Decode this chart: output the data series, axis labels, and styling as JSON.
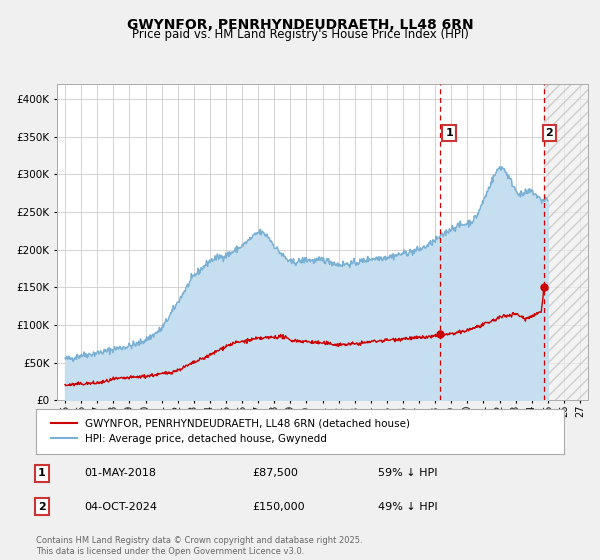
{
  "title": "GWYNFOR, PENRHYNDEUDRAETH, LL48 6RN",
  "subtitle": "Price paid vs. HM Land Registry's House Price Index (HPI)",
  "title_fontsize": 10,
  "subtitle_fontsize": 8.5,
  "bg_color": "#f0f0f0",
  "plot_bg_color": "#ffffff",
  "grid_color": "#cccccc",
  "red_color": "#cc0000",
  "blue_color": "#7ab0d4",
  "blue_fill": "#c5dff0",
  "marker1_date_x": 2018.33,
  "marker2_date_x": 2024.75,
  "legend_line1": "GWYNFOR, PENRHYNDEUDRAETH, LL48 6RN (detached house)",
  "legend_line2": "HPI: Average price, detached house, Gwynedd",
  "footer": "Contains HM Land Registry data © Crown copyright and database right 2025.\nThis data is licensed under the Open Government Licence v3.0.",
  "xlim": [
    1994.5,
    2027.5
  ],
  "ylim": [
    0,
    420000
  ],
  "yticks": [
    0,
    50000,
    100000,
    150000,
    200000,
    250000,
    300000,
    350000,
    400000
  ],
  "ytick_labels": [
    "£0",
    "£50K",
    "£100K",
    "£150K",
    "£200K",
    "£250K",
    "£300K",
    "£350K",
    "£400K"
  ]
}
